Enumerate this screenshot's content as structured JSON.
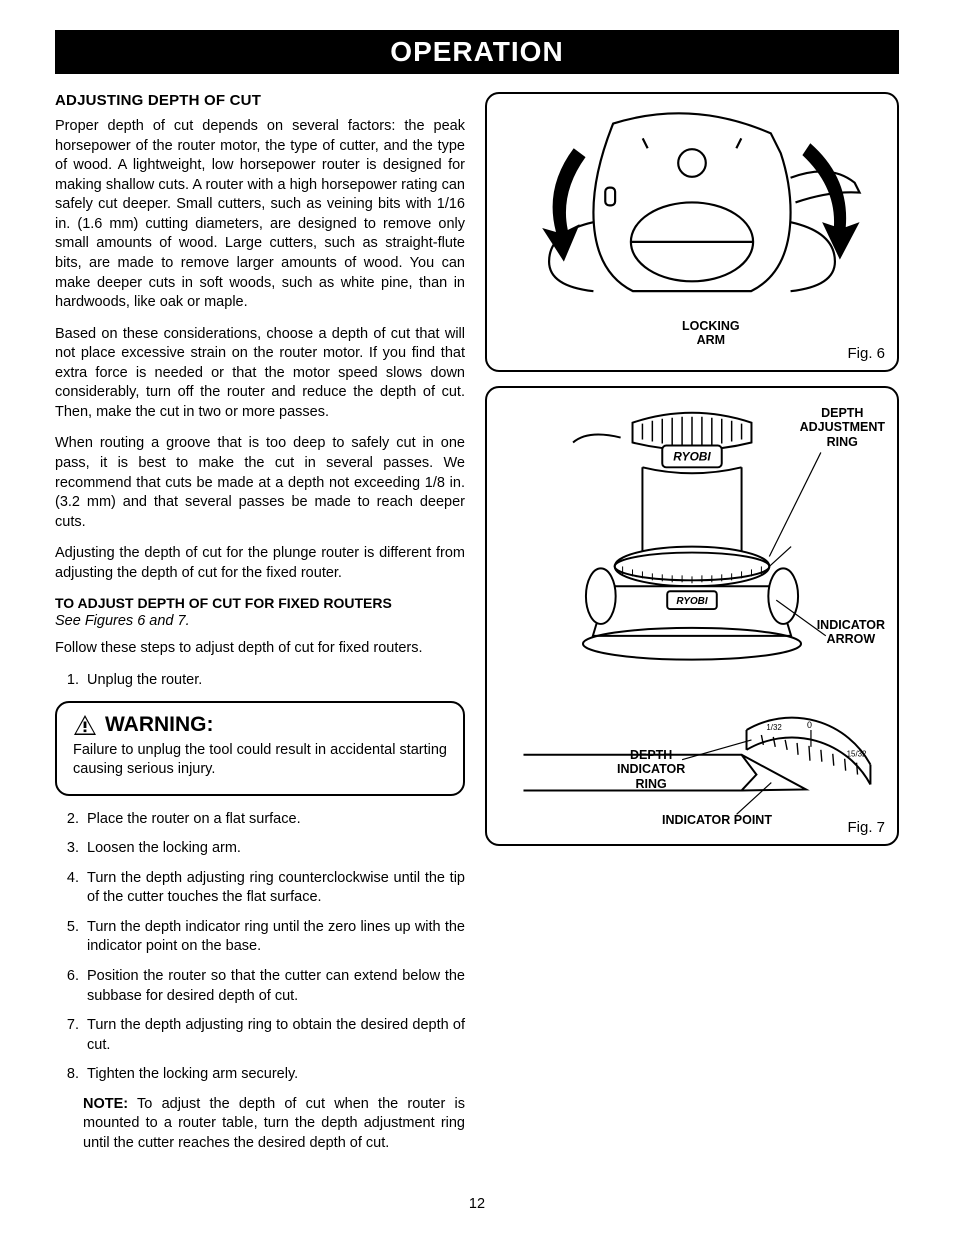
{
  "header": {
    "title": "OPERATION"
  },
  "left": {
    "section_title": "ADJUSTING DEPTH OF CUT",
    "p1": "Proper depth of cut depends on several factors: the  peak horsepower of the router motor, the type of cutter, and the type of wood. A lightweight, low horsepower router is designed for making shallow cuts. A router with a high horsepower rating can safely cut deeper. Small cutters, such as veining bits with 1/16 in. (1.6 mm) cutting diameters, are designed to remove only small amounts of wood. Large cutters, such as straight-flute bits, are made to remove larger amounts of wood. You can make deeper cuts in soft woods, such as white pine, than in hardwoods, like oak or maple.",
    "p2": "Based on these considerations, choose a depth of cut that will not place excessive strain on the router motor. If you find that extra force is needed or that the motor speed slows down considerably, turn off the router and reduce the depth of cut. Then, make the cut in two or more passes.",
    "p3": "When routing a groove that is too deep to safely cut in one pass, it is best to make the cut in several passes. We recommend that cuts be made at a depth not exceeding 1/8 in. (3.2 mm) and that several passes be made to reach deeper cuts.",
    "p4": "Adjusting the depth of cut for the plunge router is different from adjusting the depth of cut for the fixed router.",
    "sub_title": "TO ADJUST DEPTH OF CUT FOR FIXED ROUTERS",
    "see_figs": "See Figures 6 and 7.",
    "follow": "Follow these steps to adjust depth of cut for fixed routers.",
    "step1": "Unplug the router.",
    "warning_title": "WARNING:",
    "warning_text": "Failure to unplug the tool could result in accidental starting causing serious injury.",
    "step2": "Place the router on a flat surface.",
    "step3": "Loosen the locking arm.",
    "step4": "Turn the depth adjusting ring counterclockwise until the tip of the cutter touches the flat surface.",
    "step5": "Turn the depth indicator ring until the zero lines up with the indicator point on the base.",
    "step6": "Position the router so that the cutter can extend below the subbase for desired depth of cut.",
    "step7": "Turn the depth adjusting ring to obtain the desired depth of cut.",
    "step8": "Tighten the locking arm securely.",
    "note_label": "NOTE:",
    "note_text": " To adjust the depth of cut when the router is mounted to a router table, turn the depth adjustment ring until the cutter reaches the desired depth of cut."
  },
  "figures": {
    "fig6": {
      "caption": "Fig. 6",
      "labels": {
        "locking_arm": "LOCKING\nARM"
      }
    },
    "fig7": {
      "caption": "Fig. 7",
      "labels": {
        "depth_adj_ring": "DEPTH\nADJUSTMENT\nRING",
        "indicator_arrow": "INDICATOR\nARROW",
        "depth_ind_ring": "DEPTH\nINDICATOR\nRING",
        "indicator_point": "INDICATOR POINT"
      },
      "scale": {
        "left": "1/32",
        "mid": "0",
        "right": "15/32"
      }
    }
  },
  "page_number": "12",
  "colors": {
    "bg": "#ffffff",
    "fg": "#000000"
  }
}
